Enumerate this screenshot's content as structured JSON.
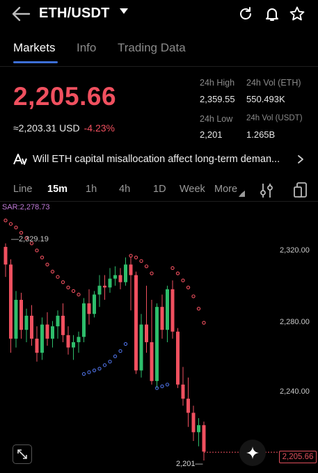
{
  "header": {
    "pair": "ETH/USDT",
    "icons": [
      "back-arrow-icon",
      "dropdown-caret-icon",
      "refresh-icon",
      "bell-icon",
      "star-icon"
    ]
  },
  "tabs": [
    {
      "label": "Markets",
      "active": true
    },
    {
      "label": "Info",
      "active": false
    },
    {
      "label": "Trading Data",
      "active": false
    }
  ],
  "ticker": {
    "price": "2,205.66",
    "approx": "≈2,203.31 USD",
    "change": "-4.23%",
    "stats": {
      "high_label": "24h High",
      "high_value": "2,359.55",
      "vol_eth_label": "24h Vol (ETH)",
      "vol_eth_value": "550.493K",
      "low_label": "24h Low",
      "low_value": "2,201",
      "vol_usdt_label": "24h Vol  (USDT)",
      "vol_usdt_value": "1.265B"
    }
  },
  "news": {
    "text": "Will ETH capital misallocation affect long-term deman..."
  },
  "intervals": [
    {
      "label": "Line"
    },
    {
      "label": "15m",
      "active": true
    },
    {
      "label": "1h"
    },
    {
      "label": "4h"
    },
    {
      "label": "1D"
    },
    {
      "label": "Week"
    },
    {
      "label": "More"
    }
  ],
  "chart": {
    "sar_label": "SAR:2,278.73",
    "high_marker": "2,329.19",
    "low_marker": "2,201",
    "y_axis": [
      "2,320.00",
      "2,280.00",
      "2,240.00"
    ],
    "last_price": "2,205.66",
    "colors": {
      "up": "#2ebd6b",
      "down": "#f0505f",
      "sar_up": "#4d6fe0",
      "sar_down": "#f0505f"
    },
    "candles": [
      [
        2322,
        2324,
        2305,
        2312
      ],
      [
        2312,
        2315,
        2262,
        2270
      ],
      [
        2270,
        2297,
        2265,
        2292
      ],
      [
        2292,
        2296,
        2270,
        2275
      ],
      [
        2275,
        2287,
        2268,
        2283
      ],
      [
        2283,
        2289,
        2266,
        2270
      ],
      [
        2270,
        2277,
        2257,
        2262
      ],
      [
        2262,
        2282,
        2258,
        2278
      ],
      [
        2278,
        2285,
        2266,
        2270
      ],
      [
        2270,
        2280,
        2265,
        2277
      ],
      [
        2277,
        2286,
        2270,
        2283
      ],
      [
        2283,
        2290,
        2268,
        2272
      ],
      [
        2272,
        2277,
        2261,
        2265
      ],
      [
        2265,
        2272,
        2258,
        2268
      ],
      [
        2268,
        2274,
        2262,
        2271
      ],
      [
        2271,
        2293,
        2268,
        2290
      ],
      [
        2290,
        2298,
        2278,
        2284
      ],
      [
        2284,
        2297,
        2282,
        2295
      ],
      [
        2295,
        2306,
        2288,
        2300
      ],
      [
        2300,
        2306,
        2292,
        2299
      ],
      [
        2299,
        2310,
        2296,
        2304
      ],
      [
        2304,
        2311,
        2300,
        2306
      ],
      [
        2306,
        2310,
        2298,
        2302
      ],
      [
        2302,
        2316,
        2300,
        2312
      ],
      [
        2312,
        2316,
        2286,
        2306
      ],
      [
        2306,
        2308,
        2250,
        2252
      ],
      [
        2252,
        2284,
        2248,
        2278
      ],
      [
        2278,
        2300,
        2262,
        2268
      ],
      [
        2268,
        2292,
        2244,
        2246
      ],
      [
        2246,
        2290,
        2242,
        2288
      ],
      [
        2288,
        2295,
        2270,
        2275
      ],
      [
        2275,
        2300,
        2268,
        2298
      ],
      [
        2298,
        2303,
        2270,
        2274
      ],
      [
        2274,
        2276,
        2242,
        2244
      ],
      [
        2244,
        2254,
        2232,
        2236
      ],
      [
        2236,
        2248,
        2220,
        2228
      ],
      [
        2228,
        2232,
        2212,
        2217
      ],
      [
        2217,
        2225,
        2209,
        2221
      ],
      [
        2221,
        2223,
        2201,
        2206
      ]
    ],
    "sar": [
      [
        2337,
        0
      ],
      [
        2335,
        0
      ],
      [
        2333,
        0
      ],
      [
        2330,
        0
      ],
      [
        2327,
        0
      ],
      [
        2324,
        0
      ],
      [
        2320,
        0
      ],
      [
        2316,
        0
      ],
      [
        2312,
        0
      ],
      [
        2308,
        0
      ],
      [
        2305,
        0
      ],
      [
        2302,
        0
      ],
      [
        2299,
        0
      ],
      [
        2297,
        0
      ],
      [
        2295,
        0
      ],
      [
        2250,
        1
      ],
      [
        2251,
        1
      ],
      [
        2252,
        1
      ],
      [
        2253,
        1
      ],
      [
        2255,
        1
      ],
      [
        2257,
        1
      ],
      [
        2260,
        1
      ],
      [
        2263,
        1
      ],
      [
        2267,
        1
      ],
      [
        2317,
        0
      ],
      [
        2316,
        0
      ],
      [
        2314,
        0
      ],
      [
        2311,
        0
      ],
      [
        2307,
        0
      ],
      [
        2242,
        1
      ],
      [
        2243,
        1
      ],
      [
        2244,
        1
      ],
      [
        2310,
        0
      ],
      [
        2307,
        0
      ],
      [
        2303,
        0
      ],
      [
        2299,
        0
      ],
      [
        2294,
        0
      ],
      [
        2287,
        0
      ],
      [
        2279,
        0
      ]
    ]
  }
}
